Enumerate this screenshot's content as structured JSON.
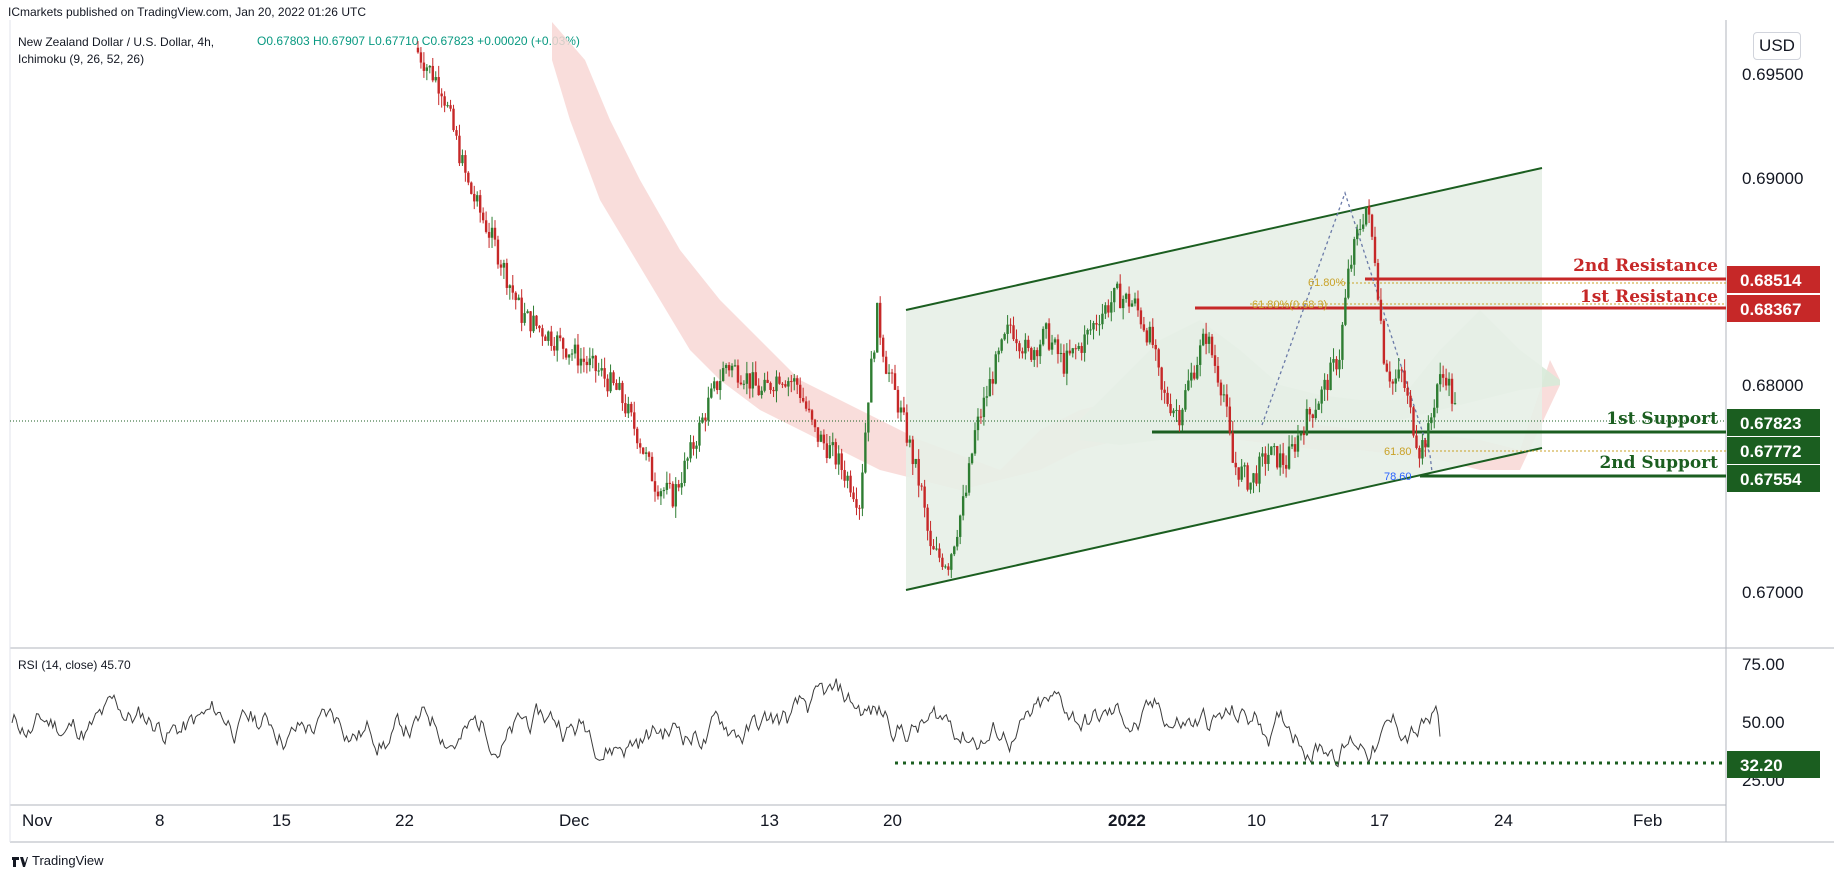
{
  "header": {
    "publisher": "ICmarkets published on TradingView.com, Jan 20, 2022 01:26 UTC"
  },
  "symbol": {
    "name": "New Zealand Dollar / U.S. Dollar, 4h,",
    "indicator": "Ichimoku (9, 26, 52, 26)"
  },
  "ohlc": "O0.67803  H0.67907  L0.67710  C0.67823  +0.00020 (+0.03%)",
  "currency_button": "USD",
  "rsi_title": "RSI (14, close)  45.70",
  "footer": {
    "brand": "TradingView"
  },
  "colors": {
    "green": "#1b5e20",
    "red": "#c62828",
    "candle_up": "#2e7d32",
    "candle_down": "#c62828",
    "cloud_red": "#f8d7d5",
    "cloud_green": "#d7ead8",
    "channel_fill": "#e7f0e7"
  },
  "chart_data": {
    "type": "candlestick",
    "title": "New Zealand Dollar / U.S. Dollar, 4h",
    "ylim": [
      0.6663,
      0.6978
    ],
    "y_ticks": [
      "0.69500",
      "0.69000",
      "0.68000",
      "0.67000"
    ],
    "x_ticks": [
      "Nov",
      "8",
      "15",
      "22",
      "Dec",
      "13",
      "20",
      "2022",
      "10",
      "17",
      "24",
      "Feb"
    ],
    "price_path": [
      [
        0,
        0.6965
      ],
      [
        3,
        0.6945
      ],
      [
        6,
        0.6895
      ],
      [
        9,
        0.6865
      ],
      [
        12,
        0.683
      ],
      [
        15,
        0.682
      ],
      [
        18,
        0.681
      ],
      [
        21,
        0.68
      ],
      [
        23,
        0.679
      ],
      [
        25,
        0.677
      ],
      [
        27,
        0.6745
      ],
      [
        29,
        0.6738
      ],
      [
        31,
        0.676
      ],
      [
        33,
        0.6785
      ],
      [
        35,
        0.6805
      ],
      [
        37,
        0.68
      ],
      [
        39,
        0.679
      ],
      [
        41,
        0.68
      ],
      [
        43,
        0.6795
      ],
      [
        45,
        0.677
      ],
      [
        47,
        0.676
      ],
      [
        49,
        0.6745
      ],
      [
        50,
        0.6735
      ],
      [
        51,
        0.679
      ],
      [
        52,
        0.683
      ],
      [
        53,
        0.6805
      ],
      [
        55,
        0.6775
      ],
      [
        57,
        0.674
      ],
      [
        58,
        0.671
      ],
      [
        60,
        0.6705
      ],
      [
        62,
        0.674
      ],
      [
        63,
        0.677
      ],
      [
        65,
        0.68
      ],
      [
        67,
        0.6825
      ],
      [
        69,
        0.681
      ],
      [
        71,
        0.682
      ],
      [
        73,
        0.6805
      ],
      [
        75,
        0.6815
      ],
      [
        77,
        0.683
      ],
      [
        79,
        0.684
      ],
      [
        81,
        0.6835
      ],
      [
        83,
        0.6815
      ],
      [
        84,
        0.679
      ],
      [
        86,
        0.678
      ],
      [
        87,
        0.6795
      ],
      [
        89,
        0.682
      ],
      [
        91,
        0.679
      ],
      [
        92,
        0.6755
      ],
      [
        94,
        0.6745
      ],
      [
        96,
        0.676
      ],
      [
        98,
        0.6755
      ],
      [
        100,
        0.6775
      ],
      [
        102,
        0.679
      ],
      [
        104,
        0.681
      ],
      [
        105,
        0.685
      ],
      [
        106,
        0.687
      ],
      [
        107,
        0.6885
      ],
      [
        108,
        0.686
      ],
      [
        109,
        0.681
      ],
      [
        110,
        0.6795
      ],
      [
        111,
        0.68
      ],
      [
        112,
        0.678
      ],
      [
        113,
        0.6762
      ],
      [
        114,
        0.677
      ],
      [
        115,
        0.6795
      ],
      [
        116,
        0.68
      ],
      [
        117,
        0.6782
      ]
    ],
    "rsi": {
      "ylim": [
        20,
        80
      ],
      "y_ticks": [
        "75.00",
        "50.00",
        "25.00"
      ],
      "current": 45.7,
      "level": 32.2
    },
    "annotations": {
      "resistance_2": {
        "label": "2nd Resistance",
        "value": "0.68514"
      },
      "resistance_1": {
        "label": "1st Resistance",
        "value": "0.68367"
      },
      "support_1": {
        "label": "1st Support",
        "value": "0.67823"
      },
      "support_1b": {
        "value": "0.67772"
      },
      "support_2": {
        "label": "2nd Support",
        "value": "0.67554"
      },
      "rsi_level": {
        "value": "32.20"
      },
      "fib_labels": [
        "61.80%",
        "61.80%(0.68 3)",
        "61.80",
        "78.60"
      ]
    }
  }
}
